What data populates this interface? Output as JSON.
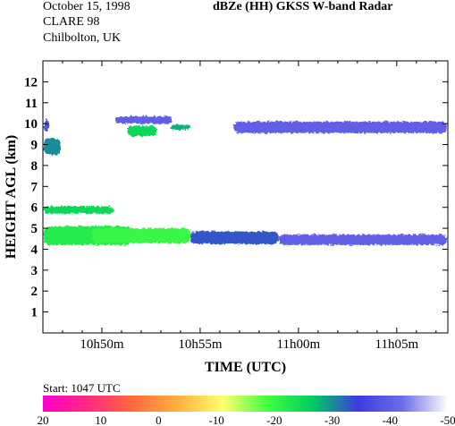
{
  "header": {
    "date": "October 15, 1998",
    "campaign": "CLARE 98",
    "site": "Chilbolton, UK",
    "title": "dBZe (HH)   GKSS  W-band Radar"
  },
  "footer": {
    "start_label": "Start: 1047 UTC"
  },
  "chart_data": {
    "type": "heatmap",
    "title": "dBZe (HH)   GKSS  W-band Radar",
    "xlabel": "TIME (UTC)",
    "ylabel": "HEIGHT AGL (km)",
    "x_ticks": [
      "10h50m",
      "10h55m",
      "11h00m",
      "11h05m"
    ],
    "x_tick_minutes": [
      50,
      55,
      60,
      65
    ],
    "xlim_minutes": [
      47,
      67.6
    ],
    "y_ticks": [
      1,
      2,
      3,
      4,
      5,
      6,
      7,
      8,
      9,
      10,
      11,
      12
    ],
    "ylim": [
      0,
      13
    ],
    "colorbar": {
      "ticks": [
        "20",
        "10",
        "0",
        "-10",
        "-20",
        "-30",
        "-40",
        "-50"
      ],
      "range": [
        20,
        -50
      ],
      "colors": [
        "#ff00cc",
        "#ff2a80",
        "#ff6a3c",
        "#ffb040",
        "#ffff70",
        "#40ff40",
        "#00cc60",
        "#3e3ae0",
        "#6d6de8",
        "#ffffff"
      ]
    },
    "echoes": [
      {
        "name": "low-layer-core",
        "t_start": 47.0,
        "t_end": 51.5,
        "h_low": 4.2,
        "h_high": 5.1,
        "dbz": -22
      },
      {
        "name": "low-layer-core-2",
        "t_start": 49.5,
        "t_end": 54.5,
        "h_low": 4.3,
        "h_high": 5.0,
        "dbz": -20
      },
      {
        "name": "low-layer-trail",
        "t_start": 54.5,
        "t_end": 59.0,
        "h_low": 4.25,
        "h_high": 4.85,
        "dbz": -33
      },
      {
        "name": "low-layer-tail",
        "t_start": 59.0,
        "t_end": 67.6,
        "h_low": 4.2,
        "h_high": 4.7,
        "dbz": -40
      },
      {
        "name": "layer-6km",
        "t_start": 47.0,
        "t_end": 50.6,
        "h_low": 5.7,
        "h_high": 6.05,
        "dbz": -25
      },
      {
        "name": "cloud-9km",
        "t_start": 47.0,
        "t_end": 47.9,
        "h_low": 8.5,
        "h_high": 9.3,
        "dbz": -30
      },
      {
        "name": "cloud-10km-left",
        "t_start": 47.0,
        "t_end": 47.3,
        "h_low": 9.6,
        "h_high": 10.2,
        "dbz": -38
      },
      {
        "name": "cloud-10km-a",
        "t_start": 50.7,
        "t_end": 53.6,
        "h_low": 10.0,
        "h_high": 10.35,
        "dbz": -40
      },
      {
        "name": "cloud-10km-b",
        "t_start": 51.3,
        "t_end": 52.8,
        "h_low": 9.4,
        "h_high": 9.9,
        "dbz": -25
      },
      {
        "name": "cloud-10km-c",
        "t_start": 53.5,
        "t_end": 54.5,
        "h_low": 9.7,
        "h_high": 9.95,
        "dbz": -28
      },
      {
        "name": "cirrus-10km",
        "t_start": 56.7,
        "t_end": 67.6,
        "h_low": 9.55,
        "h_high": 10.1,
        "dbz": -40
      }
    ]
  }
}
